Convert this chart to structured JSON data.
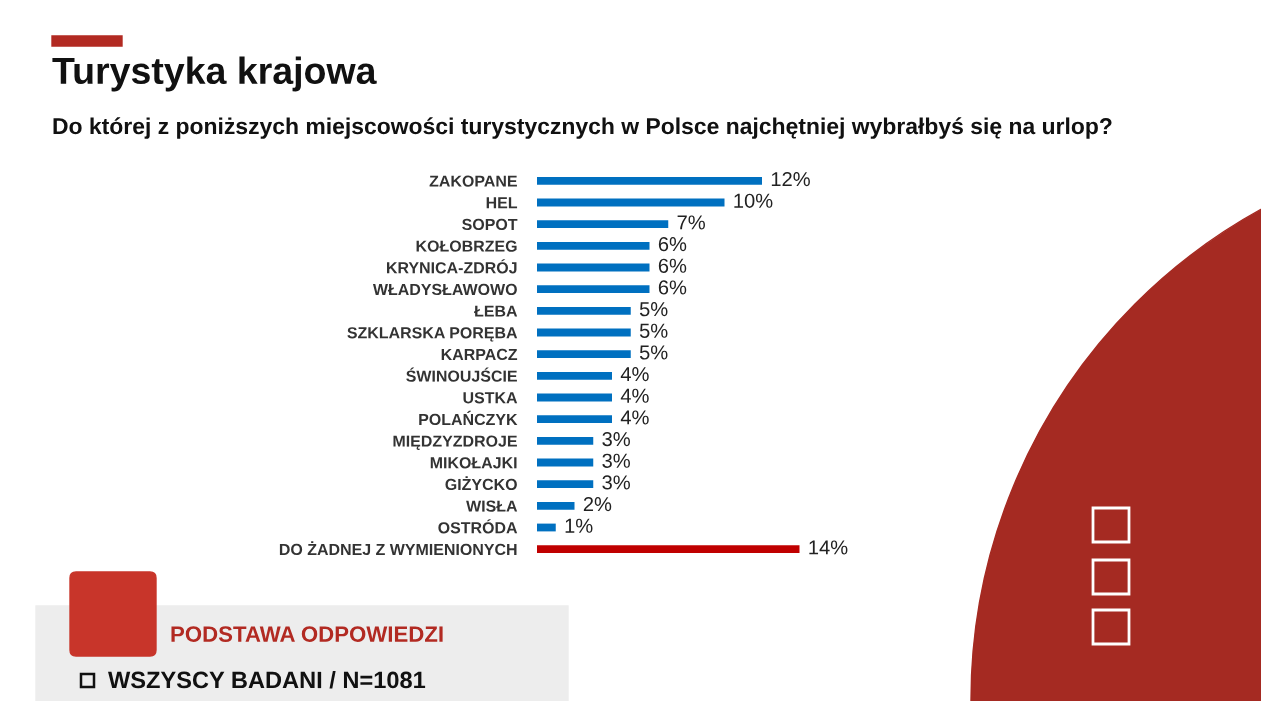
{
  "chart_data": {
    "type": "bar",
    "orientation": "horizontal",
    "title": "Turystyka krajowa",
    "subtitle": "Do której z poniższych miejscowości turystycznych w Polsce najchętniej wybrałbyś się na urlop?",
    "categories": [
      "ZAKOPANE",
      "HEL",
      "SOPOT",
      "KOŁOBRZEG",
      "KRYNICA-ZDRÓJ",
      "WŁADYSŁAWOWO",
      "ŁEBA",
      "SZKLARSKA PORĘBA",
      "KARPACZ",
      "ŚWINOUJŚCIE",
      "USTKA",
      "POLAŃCZYK",
      "MIĘDZYZDROJE",
      "MIKOŁAJKI",
      "GIŻYCKO",
      "WISŁA",
      "OSTRÓDA",
      "DO ŻADNEJ Z WYMIENIONYCH"
    ],
    "values": [
      12,
      10,
      7,
      6,
      6,
      6,
      5,
      5,
      5,
      4,
      4,
      4,
      3,
      3,
      3,
      2,
      1,
      14
    ],
    "colors": [
      "#0070c0",
      "#0070c0",
      "#0070c0",
      "#0070c0",
      "#0070c0",
      "#0070c0",
      "#0070c0",
      "#0070c0",
      "#0070c0",
      "#0070c0",
      "#0070c0",
      "#0070c0",
      "#0070c0",
      "#0070c0",
      "#0070c0",
      "#0070c0",
      "#0070c0",
      "#c00000"
    ],
    "value_labels": [
      "12%",
      "10%",
      "7%",
      "6%",
      "6%",
      "6%",
      "5%",
      "5%",
      "5%",
      "4%",
      "4%",
      "4%",
      "3%",
      "3%",
      "3%",
      "2%",
      "1%",
      "14%"
    ],
    "annotations": [
      "PODSTAWA ODPOWIEDZI",
      "WSZYSCY BADANI / N=1081"
    ]
  }
}
